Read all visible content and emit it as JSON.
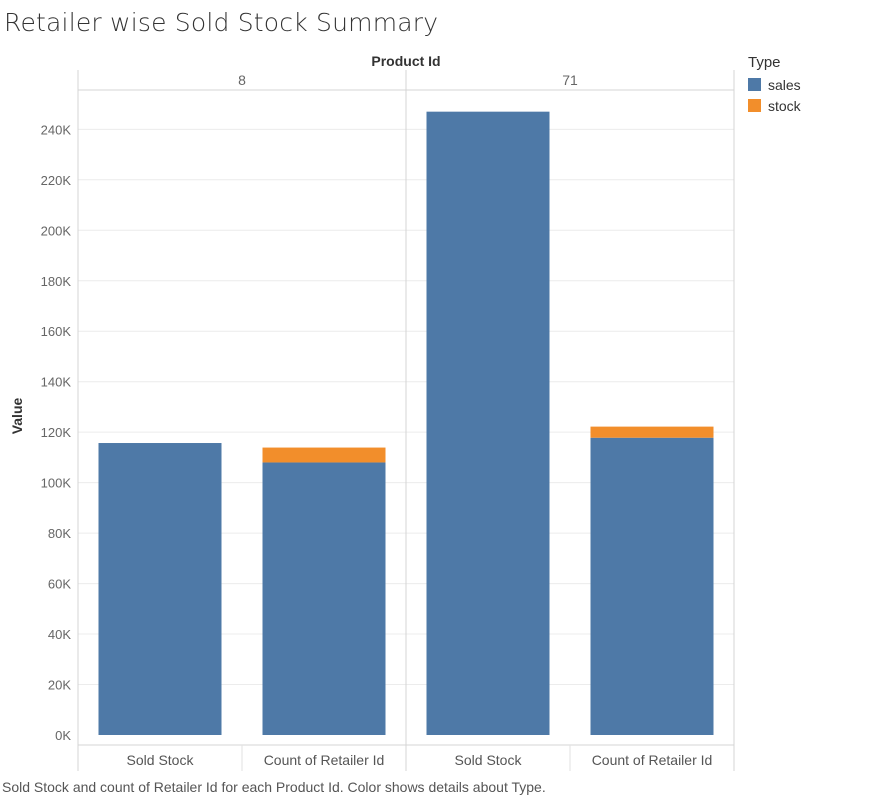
{
  "title": "Retailer wise Sold Stock Summary",
  "caption": "Sold Stock and count of Retailer Id for each Product Id.  Color shows details about Type.",
  "legend": {
    "title": "Type",
    "items": [
      {
        "label": "sales",
        "color": "#4e79a7"
      },
      {
        "label": "stock",
        "color": "#f28e2b"
      }
    ]
  },
  "chart_data": {
    "type": "bar",
    "stacked": true,
    "column_header": "Product Id",
    "ylabel": "Value",
    "ylim": [
      0,
      250000
    ],
    "yticks": [
      0,
      20000,
      40000,
      60000,
      80000,
      100000,
      120000,
      140000,
      160000,
      180000,
      200000,
      220000,
      240000
    ],
    "ytick_labels": [
      "0K",
      "20K",
      "40K",
      "60K",
      "80K",
      "100K",
      "120K",
      "140K",
      "160K",
      "180K",
      "200K",
      "220K",
      "240K"
    ],
    "grid": true,
    "legend_position": "top-right",
    "panels": [
      {
        "label": "8",
        "categories": [
          "Sold Stock",
          "Count of Retailer Id"
        ],
        "series": [
          {
            "name": "sales",
            "values": [
              115700,
              108000
            ]
          },
          {
            "name": "stock",
            "values": [
              0,
              5900
            ]
          }
        ]
      },
      {
        "label": "71",
        "categories": [
          "Sold Stock",
          "Count of Retailer Id"
        ],
        "series": [
          {
            "name": "sales",
            "values": [
              247000,
              117800
            ]
          },
          {
            "name": "stock",
            "values": [
              0,
              4400
            ]
          }
        ]
      }
    ]
  }
}
